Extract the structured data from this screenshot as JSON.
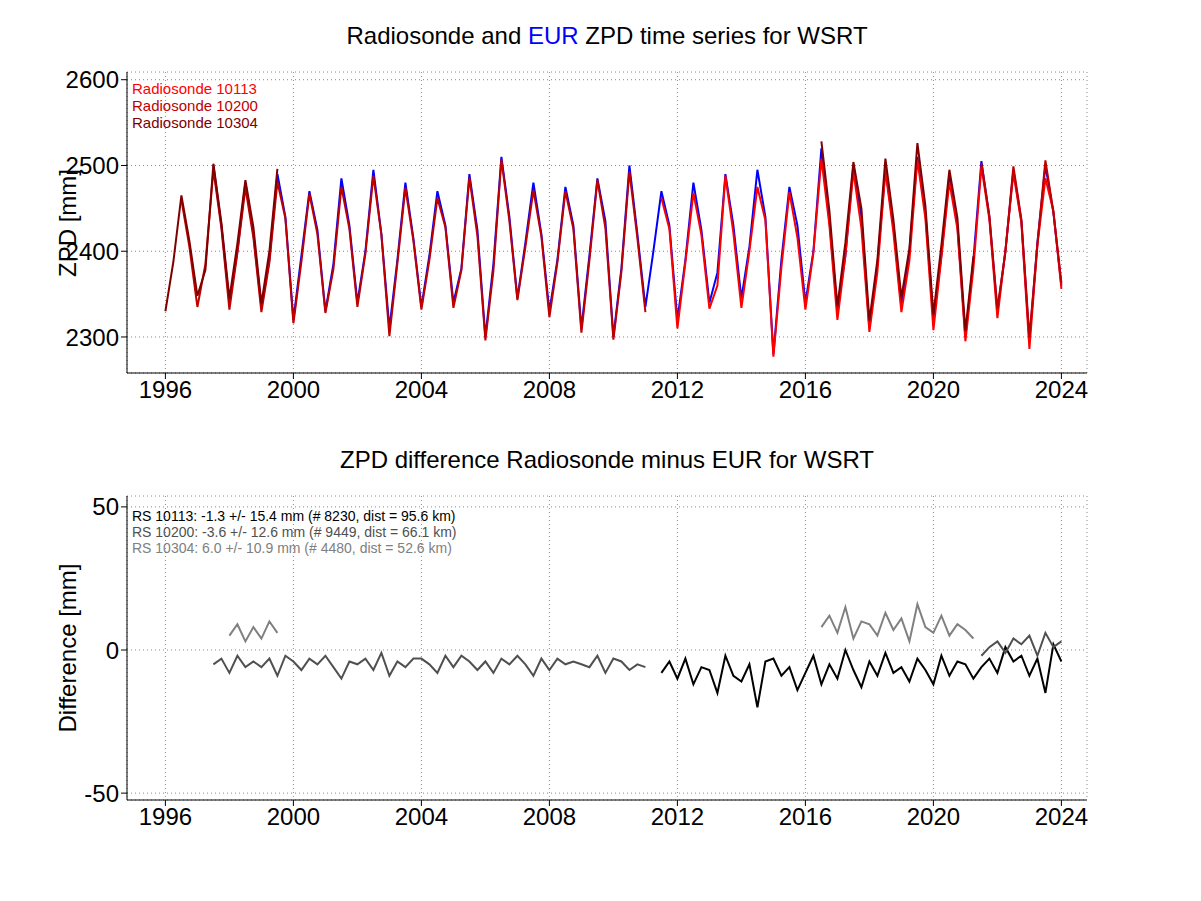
{
  "chart_data": [
    {
      "type": "line",
      "title": "Radiosonde and EUR ZPD time series for WSRT",
      "ylabel": "ZPD [mm]",
      "grid": true,
      "legend": "upper left",
      "xlim": [
        1994.8,
        2024.8
      ],
      "xticks": [
        1996,
        2000,
        2004,
        2008,
        2012,
        2016,
        2020,
        2024
      ],
      "ylim": [
        2258,
        2609
      ],
      "yticks": [
        2300,
        2400,
        2500,
        2600
      ],
      "x": [
        1996,
        1996.25,
        1996.5,
        1996.75,
        1997,
        1997.25,
        1997.5,
        1997.75,
        1998,
        1998.25,
        1998.5,
        1998.75,
        1999,
        1999.25,
        1999.5,
        1999.75,
        2000,
        2000.25,
        2000.5,
        2000.75,
        2001,
        2001.25,
        2001.5,
        2001.75,
        2002,
        2002.25,
        2002.5,
        2002.75,
        2003,
        2003.25,
        2003.5,
        2003.75,
        2004,
        2004.25,
        2004.5,
        2004.75,
        2005,
        2005.25,
        2005.5,
        2005.75,
        2006,
        2006.25,
        2006.5,
        2006.75,
        2007,
        2007.25,
        2007.5,
        2007.75,
        2008,
        2008.25,
        2008.5,
        2008.75,
        2009,
        2009.25,
        2009.5,
        2009.75,
        2010,
        2010.25,
        2010.5,
        2010.75,
        2011,
        2011.25,
        2011.5,
        2011.75,
        2012,
        2012.25,
        2012.5,
        2012.75,
        2013,
        2013.25,
        2013.5,
        2013.75,
        2014,
        2014.25,
        2014.5,
        2014.75,
        2015,
        2015.25,
        2015.5,
        2015.75,
        2016,
        2016.25,
        2016.5,
        2016.75,
        2017,
        2017.25,
        2017.5,
        2017.75,
        2018,
        2018.25,
        2018.5,
        2018.75,
        2019,
        2019.25,
        2019.5,
        2019.75,
        2020,
        2020.25,
        2020.5,
        2020.75,
        2021,
        2021.25,
        2021.5,
        2021.75,
        2022,
        2022.25,
        2022.5,
        2022.75,
        2023,
        2023.25,
        2023.5,
        2023.75,
        2024
      ],
      "series": [
        {
          "name": "EUR",
          "color": "#0000ff",
          "values": [
            null,
            null,
            null,
            null,
            null,
            null,
            2500,
            2430,
            2340,
            2400,
            2480,
            2420,
            2335,
            2390,
            2490,
            2440,
            2320,
            2395,
            2470,
            2425,
            2330,
            2385,
            2485,
            2430,
            2340,
            2400,
            2495,
            2420,
            2310,
            2390,
            2480,
            2415,
            2335,
            2395,
            2470,
            2430,
            2340,
            2380,
            2490,
            2425,
            2300,
            2385,
            2510,
            2440,
            2345,
            2410,
            2480,
            2420,
            2330,
            2390,
            2475,
            2430,
            2310,
            2395,
            2485,
            2435,
            2300,
            2380,
            2500,
            2420,
            2335,
            2400,
            2470,
            2430,
            2320,
            2390,
            2480,
            2425,
            2340,
            2375,
            2490,
            2430,
            2345,
            2405,
            2495,
            2440,
            2280,
            2390,
            2475,
            2430,
            2340,
            2400,
            2520,
            2435,
            2330,
            2395,
            2500,
            2440,
            2310,
            2385,
            2495,
            2430,
            2335,
            2400,
            2510,
            2445,
            2320,
            2395,
            2490,
            2430,
            2300,
            2390,
            2505,
            2440,
            2330,
            2400,
            2495,
            2435,
            2295,
            2410,
            2500,
            2445,
            2360
          ]
        },
        {
          "name": "Radiosonde 10113",
          "color": "#ff0000",
          "values": [
            null,
            null,
            null,
            null,
            null,
            null,
            null,
            null,
            null,
            null,
            null,
            null,
            null,
            null,
            null,
            null,
            null,
            null,
            null,
            null,
            null,
            null,
            null,
            null,
            null,
            null,
            null,
            null,
            null,
            null,
            null,
            null,
            null,
            null,
            null,
            null,
            null,
            null,
            null,
            null,
            null,
            null,
            null,
            null,
            null,
            null,
            null,
            null,
            null,
            null,
            null,
            null,
            null,
            null,
            null,
            null,
            null,
            null,
            null,
            null,
            null,
            null,
            2462,
            2426,
            2310,
            2387,
            2468,
            2419,
            2333,
            2360,
            2488,
            2421,
            2334,
            2400,
            2475,
            2436,
            2277,
            2381,
            2469,
            2416,
            2332,
            2398,
            2508,
            2430,
            2320,
            2395,
            2493,
            2427,
            2306,
            2376,
            2494,
            2422,
            2329,
            2389,
            2507,
            2438,
            2308,
            2393,
            2481,
            2426,
            2295,
            2380,
            2499,
            2437,
            2322,
            2401,
            2491,
            2433,
            2286,
            2407,
            2485,
            2447,
            2356
          ]
        },
        {
          "name": "Radiosonde 10200",
          "color": "#c00000",
          "values": [
            null,
            null,
            2460,
            2405,
            2335,
            2385,
            2495,
            2427,
            2332,
            2398,
            2474,
            2416,
            2329,
            2387,
            2481,
            2438,
            2316,
            2388,
            2467,
            2420,
            2328,
            2379,
            2475,
            2426,
            2335,
            2397,
            2488,
            2419,
            2301,
            2386,
            2474,
            2412,
            2332,
            2390,
            2462,
            2428,
            2334,
            2378,
            2486,
            2418,
            2296,
            2377,
            2507,
            2435,
            2343,
            2405,
            2471,
            2417,
            2323,
            2387,
            2470,
            2426,
            2305,
            2389,
            2483,
            2427,
            2297,
            2376,
            2493,
            2415,
            2329,
            null,
            null,
            null,
            null,
            null,
            null,
            null,
            null,
            null,
            null,
            null,
            null,
            null,
            null,
            null,
            null,
            null,
            null,
            null,
            null,
            null,
            null,
            null,
            null,
            null,
            null,
            null,
            null,
            null,
            null,
            null,
            null,
            null,
            null,
            null,
            null,
            null,
            null,
            null,
            null,
            null,
            2503,
            2441,
            2333,
            2399,
            2499,
            2437,
            2300,
            2408,
            2506,
            2446,
            2363
          ]
        },
        {
          "name": "Radiosonde 10304",
          "color": "#800000",
          "values": [
            2330,
            2388,
            2465,
            2412,
            2348,
            2378,
            2502,
            2433,
            2345,
            2409,
            2483,
            2428,
            2339,
            2400,
            2496,
            null,
            null,
            null,
            null,
            null,
            null,
            null,
            null,
            null,
            null,
            null,
            null,
            null,
            null,
            null,
            null,
            null,
            null,
            null,
            null,
            null,
            null,
            null,
            null,
            null,
            null,
            null,
            null,
            null,
            null,
            null,
            null,
            null,
            null,
            null,
            null,
            null,
            null,
            null,
            null,
            null,
            null,
            null,
            null,
            null,
            null,
            null,
            null,
            null,
            null,
            null,
            null,
            null,
            null,
            null,
            null,
            null,
            null,
            null,
            null,
            null,
            null,
            null,
            null,
            null,
            null,
            null,
            2528,
            2447,
            2336,
            2410,
            2504,
            2450,
            2319,
            2390,
            2508,
            2437,
            2346,
            2403,
            2526,
            2453,
            2326,
            2407,
            2495,
            2439,
            2307,
            2394,
            null,
            null,
            null,
            null,
            null,
            null,
            null,
            null,
            null,
            null,
            null
          ]
        }
      ]
    },
    {
      "type": "line",
      "title": "ZPD difference Radiosonde minus EUR for WSRT",
      "ylabel": "Difference [mm]",
      "grid": true,
      "xlim": [
        1994.8,
        2024.8
      ],
      "xticks": [
        1996,
        2000,
        2004,
        2008,
        2012,
        2016,
        2020,
        2024
      ],
      "ylim": [
        -52.4,
        53.8
      ],
      "yticks": [
        -50,
        0,
        50
      ],
      "annotations": [
        "RS 10113: -1.3 +/- 15.4 mm (# 8230, dist =  95.6 km)",
        "RS 10200: -3.6 +/- 12.6 mm (# 9449, dist =  66.1 km)",
        "RS 10304: 6.0 +/- 10.9 mm (# 4480, dist =  52.6 km)"
      ],
      "x": [
        1996,
        1996.25,
        1996.5,
        1996.75,
        1997,
        1997.25,
        1997.5,
        1997.75,
        1998,
        1998.25,
        1998.5,
        1998.75,
        1999,
        1999.25,
        1999.5,
        1999.75,
        2000,
        2000.25,
        2000.5,
        2000.75,
        2001,
        2001.25,
        2001.5,
        2001.75,
        2002,
        2002.25,
        2002.5,
        2002.75,
        2003,
        2003.25,
        2003.5,
        2003.75,
        2004,
        2004.25,
        2004.5,
        2004.75,
        2005,
        2005.25,
        2005.5,
        2005.75,
        2006,
        2006.25,
        2006.5,
        2006.75,
        2007,
        2007.25,
        2007.5,
        2007.75,
        2008,
        2008.25,
        2008.5,
        2008.75,
        2009,
        2009.25,
        2009.5,
        2009.75,
        2010,
        2010.25,
        2010.5,
        2010.75,
        2011,
        2011.25,
        2011.5,
        2011.75,
        2012,
        2012.25,
        2012.5,
        2012.75,
        2013,
        2013.25,
        2013.5,
        2013.75,
        2014,
        2014.25,
        2014.5,
        2014.75,
        2015,
        2015.25,
        2015.5,
        2015.75,
        2016,
        2016.25,
        2016.5,
        2016.75,
        2017,
        2017.25,
        2017.5,
        2017.75,
        2018,
        2018.25,
        2018.5,
        2018.75,
        2019,
        2019.25,
        2019.5,
        2019.75,
        2020,
        2020.25,
        2020.5,
        2020.75,
        2021,
        2021.25,
        2021.5,
        2021.75,
        2022,
        2022.25,
        2022.5,
        2022.75,
        2023,
        2023.25,
        2023.5,
        2023.75,
        2024
      ],
      "series": [
        {
          "name": "RS 10113",
          "color": "#000000",
          "values": [
            null,
            null,
            null,
            null,
            null,
            null,
            null,
            null,
            null,
            null,
            null,
            null,
            null,
            null,
            null,
            null,
            null,
            null,
            null,
            null,
            null,
            null,
            null,
            null,
            null,
            null,
            null,
            null,
            null,
            null,
            null,
            null,
            null,
            null,
            null,
            null,
            null,
            null,
            null,
            null,
            null,
            null,
            null,
            null,
            null,
            null,
            null,
            null,
            null,
            null,
            null,
            null,
            null,
            null,
            null,
            null,
            null,
            null,
            null,
            null,
            null,
            null,
            -8,
            -4,
            -10,
            -3,
            -12,
            -6,
            -7,
            -15,
            -2,
            -9,
            -11,
            -5,
            -20,
            -4,
            -3,
            -9,
            -6,
            -14,
            -8,
            -2,
            -12,
            -5,
            -10,
            0,
            -7,
            -13,
            -4,
            -9,
            -1,
            -8,
            -6,
            -11,
            -3,
            -7,
            -12,
            -2,
            -9,
            -4,
            -5,
            -10,
            -6,
            -3,
            -8,
            1,
            -4,
            -2,
            -9,
            -3,
            -15,
            2,
            -4
          ]
        },
        {
          "name": "RS 10200",
          "color": "#505050",
          "values": [
            null,
            null,
            null,
            null,
            null,
            null,
            -5,
            -3,
            -8,
            -2,
            -6,
            -4,
            -6,
            -3,
            -9,
            -2,
            -4,
            -7,
            -3,
            -5,
            -2,
            -6,
            -10,
            -4,
            -5,
            -3,
            -7,
            -1,
            -9,
            -4,
            -6,
            -3,
            -3,
            -5,
            -8,
            -2,
            -6,
            -2,
            -4,
            -7,
            -4,
            -8,
            -3,
            -5,
            -2,
            -5,
            -9,
            -3,
            -7,
            -3,
            -5,
            -4,
            -5,
            -6,
            -2,
            -8,
            -3,
            -4,
            -7,
            -5,
            -6,
            null,
            null,
            null,
            null,
            null,
            null,
            null,
            null,
            null,
            null,
            null,
            null,
            null,
            null,
            null,
            null,
            null,
            null,
            null,
            null,
            null,
            null,
            null,
            null,
            null,
            null,
            null,
            null,
            null,
            null,
            null,
            null,
            null,
            null,
            null,
            null,
            null,
            null,
            null,
            null,
            null,
            -2,
            1,
            3,
            -1,
            4,
            2,
            5,
            -2,
            6,
            1,
            3
          ]
        },
        {
          "name": "RS 10304",
          "color": "#808080",
          "values": [
            null,
            null,
            null,
            null,
            null,
            null,
            null,
            null,
            5,
            9,
            3,
            8,
            4,
            10,
            6,
            null,
            null,
            null,
            null,
            null,
            null,
            null,
            null,
            null,
            null,
            null,
            null,
            null,
            null,
            null,
            null,
            null,
            null,
            null,
            null,
            null,
            null,
            null,
            null,
            null,
            null,
            null,
            null,
            null,
            null,
            null,
            null,
            null,
            null,
            null,
            null,
            null,
            null,
            null,
            null,
            null,
            null,
            null,
            null,
            null,
            null,
            null,
            null,
            null,
            null,
            null,
            null,
            null,
            null,
            null,
            null,
            null,
            null,
            null,
            null,
            null,
            null,
            null,
            null,
            null,
            null,
            null,
            8,
            12,
            6,
            15,
            4,
            10,
            9,
            5,
            13,
            7,
            11,
            3,
            16,
            8,
            6,
            12,
            5,
            9,
            7,
            4,
            null,
            null,
            null,
            null,
            null,
            null,
            null,
            null,
            null,
            null,
            null
          ]
        }
      ]
    }
  ]
}
